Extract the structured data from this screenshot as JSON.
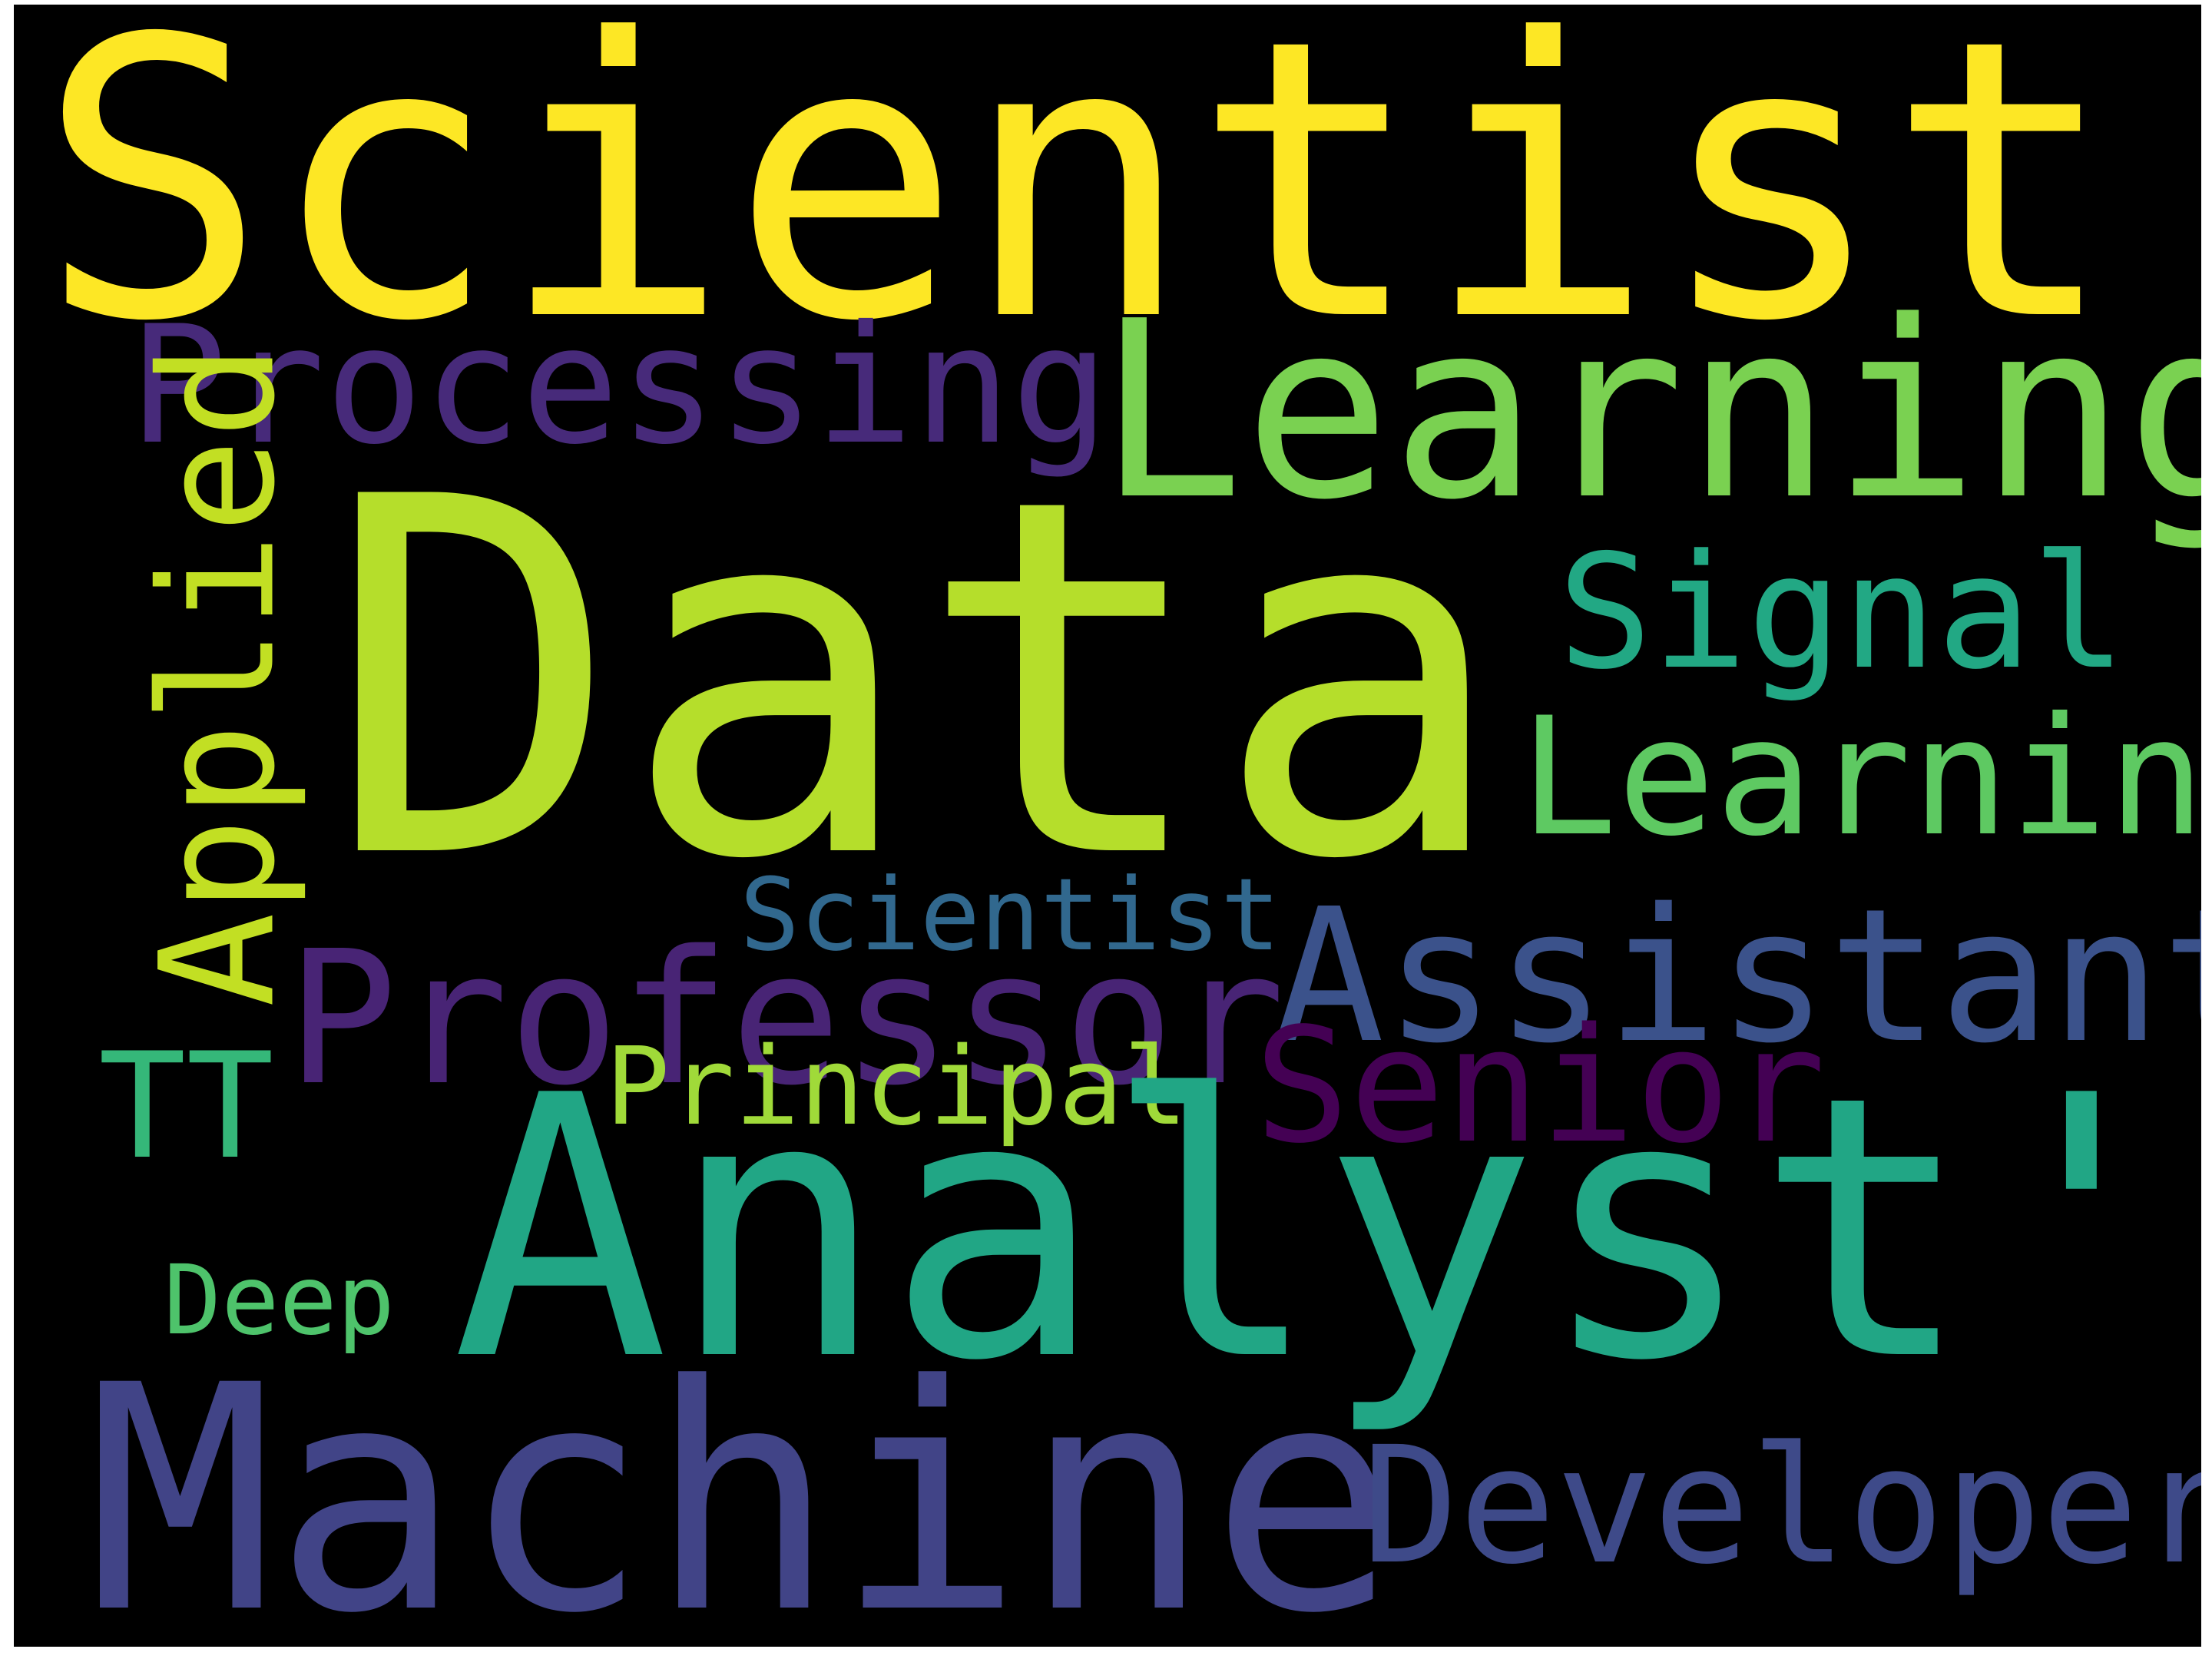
{
  "words": {
    "scientist_big": {
      "text": "Scientist'",
      "color": "#fde725"
    },
    "processing": {
      "text": "Processing",
      "color": "#472a7a"
    },
    "learning_quote": {
      "text": "Learning'",
      "color": "#7ad151"
    },
    "data": {
      "text": "Data",
      "color": "#b5de2b"
    },
    "signal": {
      "text": "Signal",
      "color": "#22a884"
    },
    "learning": {
      "text": "Learning",
      "color": "#5ec962"
    },
    "applied": {
      "text": "Applied",
      "color": "#c2df23"
    },
    "scientist_small": {
      "text": "Scientist",
      "color": "#31688e"
    },
    "professor": {
      "text": "Professor",
      "color": "#482475"
    },
    "assistant": {
      "text": "Assistant",
      "color": "#3b528b"
    },
    "senior": {
      "text": "Senior",
      "color": "#440154"
    },
    "tt": {
      "text": "TT",
      "color": "#35b779"
    },
    "principal": {
      "text": "Principal",
      "color": "#a0da39"
    },
    "analyst": {
      "text": "Analyst'",
      "color": "#21a685"
    },
    "deep": {
      "text": "Deep",
      "color": "#4ec36b"
    },
    "machine": {
      "text": "Machine",
      "color": "#414487"
    },
    "developer": {
      "text": "Developer",
      "color": "#3e4a89"
    }
  },
  "background_color": "#000000"
}
